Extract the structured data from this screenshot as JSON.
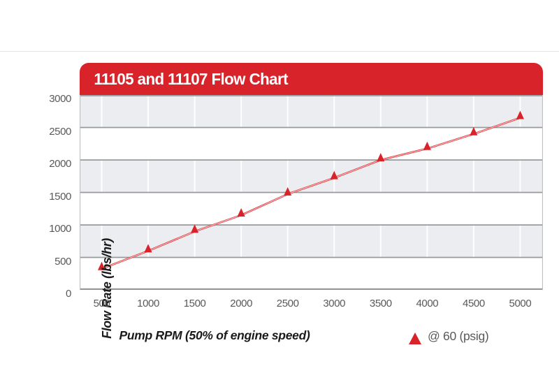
{
  "header": {
    "title": "11105 and 11107 Flow Chart"
  },
  "axes": {
    "x_title": "Pump RPM (50% of engine speed)",
    "y_title": "Flow Rate (lbs/hr)",
    "x_tick_labels": [
      "500",
      "1000",
      "1500",
      "2000",
      "2500",
      "3000",
      "3500",
      "4000",
      "4500",
      "5000"
    ],
    "y_tick_labels": [
      "3000",
      "2500",
      "2000",
      "1500",
      "1000",
      "500",
      "0"
    ]
  },
  "legend": {
    "label": "@ 60 (psig)",
    "marker": "triangle-up-icon",
    "marker_color": "#d8232a"
  },
  "chart_data": {
    "type": "line",
    "title": "11105 and 11107 Flow Chart",
    "xlabel": "Pump RPM (50% of engine speed)",
    "ylabel": "Flow Rate (lbs/hr)",
    "x": [
      500,
      1000,
      1500,
      2000,
      2500,
      3000,
      3500,
      4000,
      4500,
      5000
    ],
    "series": [
      {
        "name": "@ 60 (psig)",
        "marker": "triangle-up",
        "color": "#d8232a",
        "values": [
          325,
          600,
          900,
          1150,
          1475,
          1725,
          2000,
          2175,
          2400,
          2650
        ]
      }
    ],
    "x_ticks": [
      500,
      1000,
      1500,
      2000,
      2500,
      3000,
      3500,
      4000,
      4500,
      5000
    ],
    "y_ticks": [
      0,
      500,
      1000,
      1500,
      2000,
      2500,
      3000
    ],
    "xlim": [
      263,
      5237
    ],
    "ylim": [
      0,
      3000
    ],
    "grid": "horizontal-major",
    "band_fill": "alternating-horizontal",
    "legend_position": "bottom-right"
  },
  "colors": {
    "accent_red": "#d8232a",
    "line_red": "#e23338",
    "band_gray": "#ebedf0",
    "band_white": "#ffffff",
    "gridline_gray": "#97999b",
    "border_gray": "#bdbfc1",
    "tick_text_gray": "#58595b",
    "axis_title_black": "#1a1a1a"
  }
}
